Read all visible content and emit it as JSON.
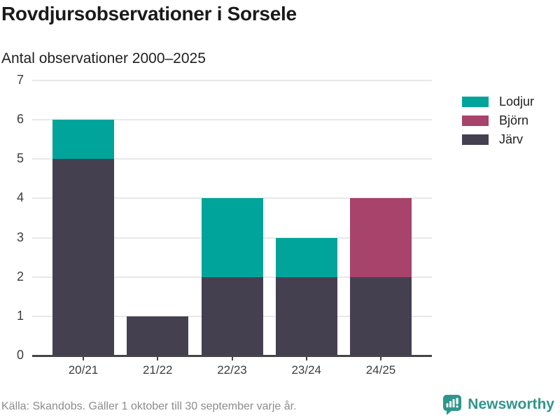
{
  "title": "Rovdjursobservationer i Sorsele",
  "subtitle": "Antal observationer 2000–2025",
  "footer": {
    "source": "Källa: Skandobs. Gäller 1 oktober till 30 september varje år.",
    "brand": "Newsworthy"
  },
  "colors": {
    "lodjur": "#00a49a",
    "bjorn": "#a8436b",
    "jarv": "#454050",
    "brand_teal": "#2f968d",
    "gridline": "#e8e8e8",
    "axis": "#454545",
    "tick_label": "#3d3d3d",
    "footer_text": "#8c8c8c"
  },
  "chart_data": {
    "type": "bar",
    "stacked": true,
    "title": "Rovdjursobservationer i Sorsele",
    "subtitle": "Antal observationer 2000–2025",
    "categories": [
      "20/21",
      "21/22",
      "22/23",
      "23/24",
      "24/25"
    ],
    "series": [
      {
        "name": "Järv",
        "color_key": "jarv",
        "values": [
          5,
          1,
          2,
          2,
          2
        ]
      },
      {
        "name": "Lodjur",
        "color_key": "lodjur",
        "values": [
          1,
          0,
          2,
          1,
          0
        ]
      },
      {
        "name": "Björn",
        "color_key": "bjorn",
        "values": [
          0,
          0,
          0,
          0,
          2
        ]
      }
    ],
    "totals": [
      6,
      1,
      4,
      3,
      4
    ],
    "legend": [
      {
        "label": "Lodjur",
        "color_key": "lodjur"
      },
      {
        "label": "Björn",
        "color_key": "bjorn"
      },
      {
        "label": "Järv",
        "color_key": "jarv"
      }
    ],
    "xlabel": "",
    "ylabel": "",
    "ylim": [
      0,
      7
    ],
    "yticks": [
      0,
      1,
      2,
      3,
      4,
      5,
      6,
      7
    ],
    "grid": true,
    "legend_position": "right"
  }
}
